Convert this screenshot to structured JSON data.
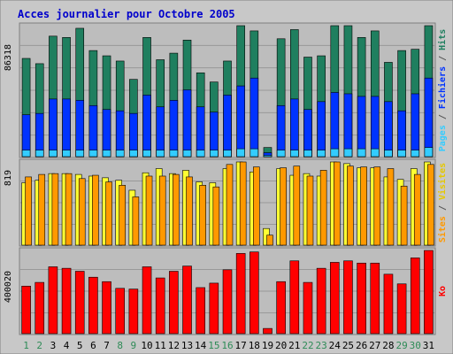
{
  "chart_data": {
    "type": "bar",
    "title": "Acces journalier pour Octobre 2005",
    "categories": [
      "1",
      "2",
      "3",
      "4",
      "5",
      "6",
      "7",
      "8",
      "9",
      "10",
      "11",
      "12",
      "13",
      "14",
      "15",
      "16",
      "17",
      "18",
      "19",
      "20",
      "21",
      "22",
      "23",
      "24",
      "25",
      "26",
      "27",
      "28",
      "29",
      "30",
      "31"
    ],
    "weekend_days": [
      1,
      2,
      8,
      9,
      15,
      16,
      22,
      23,
      29,
      30
    ],
    "panels": [
      {
        "id": "top",
        "ytick": "86318",
        "ymax": 100000,
        "ylabel_parts": [
          {
            "text": "Pages",
            "color": "#33ccff"
          },
          {
            "text": " / ",
            "color": "#555555"
          },
          {
            "text": "Fichiers",
            "color": "#0033ff"
          },
          {
            "text": " / ",
            "color": "#555555"
          },
          {
            "text": "Hits",
            "color": "#1f7f5f"
          }
        ],
        "series": [
          {
            "name": "Hits",
            "color": "#1f7f5f",
            "values": [
              75000,
              71000,
              92000,
              91000,
              98000,
              81000,
              77000,
              73000,
              59000,
              91000,
              74000,
              79000,
              89000,
              64000,
              57000,
              73000,
              100000,
              96000,
              7000,
              90000,
              97000,
              76000,
              77000,
              108000,
              101000,
              91000,
              96000,
              72000,
              81000,
              82000,
              103000
            ]
          },
          {
            "name": "Fichiers",
            "color": "#0033ff",
            "values": [
              32000,
              33000,
              44000,
              44000,
              43000,
              39000,
              36000,
              35000,
              33000,
              47000,
              38000,
              43000,
              51000,
              38000,
              34000,
              47000,
              54000,
              60000,
              3000,
              39000,
              44000,
              36000,
              42000,
              49000,
              48000,
              46000,
              46000,
              42000,
              35000,
              48000,
              60000
            ]
          },
          {
            "name": "Pages",
            "color": "#33ccff",
            "values": [
              5000,
              5000,
              5000,
              5000,
              5000,
              5000,
              5000,
              5000,
              5000,
              5000,
              5000,
              5000,
              5000,
              5000,
              5000,
              5000,
              6000,
              6000,
              1000,
              5000,
              5000,
              5000,
              5000,
              6000,
              6000,
              6000,
              6000,
              5000,
              5000,
              5000,
              7000
            ]
          }
        ]
      },
      {
        "id": "middle",
        "ytick": "819",
        "ymax": 1000,
        "ylabel_parts": [
          {
            "text": "Sites",
            "color": "#ff9900"
          },
          {
            "text": " / ",
            "color": "#555555"
          },
          {
            "text": "Visites",
            "color": "#e6c800"
          }
        ],
        "series": [
          {
            "name": "Visites",
            "color": "#ffff33",
            "values": [
              750,
              780,
              860,
              860,
              850,
              830,
              810,
              780,
              660,
              870,
              920,
              860,
              900,
              760,
              750,
              920,
              1000,
              880,
              200,
              920,
              840,
              860,
              830,
              1000,
              980,
              930,
              930,
              820,
              790,
              920,
              1000
            ]
          },
          {
            "name": "Sites",
            "color": "#ff9900",
            "values": [
              820,
              850,
              860,
              860,
              800,
              840,
              760,
              720,
              580,
              830,
              830,
              850,
              820,
              720,
              700,
              970,
              1010,
              940,
              120,
              930,
              950,
              830,
              900,
              1000,
              950,
              940,
              940,
              920,
              710,
              850,
              970
            ]
          }
        ]
      },
      {
        "id": "bottom",
        "ytick": "400020",
        "ymax": 560000,
        "ylabel_parts": [
          {
            "text": "Ko",
            "color": "#ff0000"
          }
        ],
        "series": [
          {
            "name": "Ko",
            "color": "#ff0000",
            "values": [
              320000,
              345000,
              450000,
              440000,
              420000,
              380000,
              350000,
              305000,
              300000,
              450000,
              375000,
              420000,
              455000,
              310000,
              340000,
              430000,
              540000,
              550000,
              35000,
              350000,
              490000,
              345000,
              440000,
              480000,
              490000,
              475000,
              475000,
              400000,
              335000,
              510000,
              585000
            ]
          }
        ]
      }
    ]
  }
}
